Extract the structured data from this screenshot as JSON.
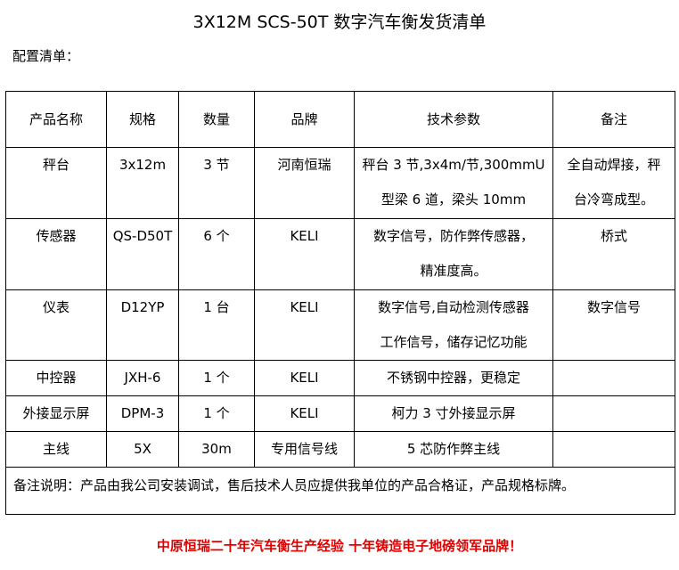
{
  "title": "3X12M SCS-50T 数字汽车衡发货清单",
  "subtitle": "配置清单：",
  "headers": [
    "产品名称",
    "规格",
    "数量",
    "品牌",
    "技术参数",
    "备注"
  ],
  "rows": [
    {
      "name": "秤台",
      "spec": "3x12m",
      "qty": "3 节",
      "brand": "河南恒瑞",
      "tech": [
        "秤台 3 节,3x4m/节,300mmU",
        "型梁 6 道，梁头 10mm"
      ],
      "remark": [
        "全自动焊接，秤",
        "台冷弯成型。"
      ]
    },
    {
      "name": "传感器",
      "spec": "QS-D50T",
      "qty": "6 个",
      "brand": "KELI",
      "tech": [
        "数字信号，防作弊传感器，",
        "精准度高。"
      ],
      "remark": [
        "桥式",
        ""
      ]
    },
    {
      "name": "仪表",
      "spec": "D12YP",
      "qty": "1 台",
      "brand": "KELI",
      "tech": [
        "数字信号,自动检测传感器",
        "工作信号，储存记忆功能"
      ],
      "remark": [
        "数字信号",
        ""
      ]
    },
    {
      "name": "中控器",
      "spec": "JXH-6",
      "qty": "1 个",
      "brand": "KELI",
      "tech": [
        "不锈钢中控器，更稳定",
        ""
      ],
      "remark": [
        "",
        ""
      ]
    },
    {
      "name": "外接显示屏",
      "spec": "DPM-3",
      "qty": "1 个",
      "brand": "KELI",
      "tech": [
        "柯力 3 寸外接显示屏",
        ""
      ],
      "remark": [
        "",
        ""
      ]
    },
    {
      "name": "主线",
      "spec": "5X",
      "qty": "30m",
      "brand": "专用信号线",
      "tech": [
        "5 芯防作弊主线",
        ""
      ],
      "remark": [
        "",
        ""
      ]
    }
  ],
  "note": "备注说明：产品由我公司安装调试，售后技术人员应提供我单位的产品合格证，产品规格标牌。",
  "footer": "中原恒瑞二十年汽车衡生产经验 十年铸造电子地磅领军品牌！",
  "colors": {
    "footer": "#e00000"
  }
}
